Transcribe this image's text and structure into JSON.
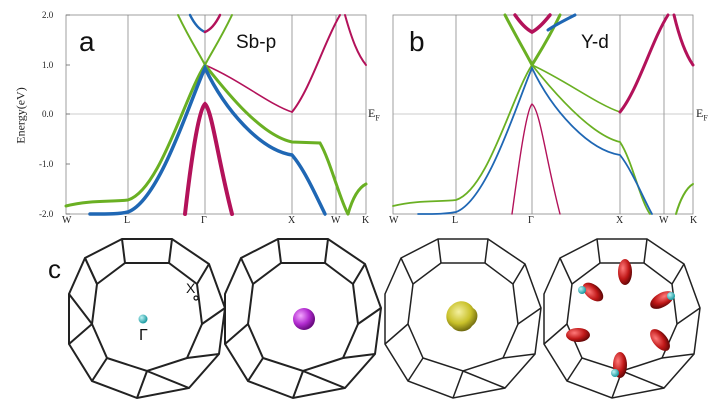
{
  "figure": {
    "panel_a": {
      "label": "a",
      "projection": "Sb-p"
    },
    "panel_b": {
      "label": "b",
      "projection": "Y-d"
    },
    "panel_c": {
      "label": "c",
      "gamma": "Γ",
      "x_point": "X"
    },
    "ylabel": "Energy(eV)",
    "fermi": {
      "E": "E",
      "sub": "F"
    },
    "yticks": [
      "2.0",
      "1.0",
      "0.0",
      "-1.0",
      "-2.0"
    ],
    "kpoints": [
      "W",
      "L",
      "Γ",
      "X",
      "W",
      "K"
    ]
  },
  "colors": {
    "green": "#6ab023",
    "blue": "#1f67b4",
    "magenta": "#b3125a",
    "cyan": "#27c3c9",
    "purple": "#b22bd0",
    "yellow": "#c9c12a",
    "red": "#c01818"
  },
  "chart_data": [
    {
      "type": "line",
      "title": "Sb-p",
      "ylabel": "Energy(eV)",
      "ylim": [
        -2.0,
        2.0
      ],
      "x_ticks": [
        "W",
        "L",
        "Γ",
        "X",
        "W",
        "K"
      ],
      "x": [
        0,
        1,
        2,
        3,
        4,
        5,
        6,
        7,
        8
      ],
      "series": [
        {
          "values": [
            -1.9,
            -1.74,
            -1.2,
            0.2,
            1.0,
            0.0,
            -0.5,
            -1.2,
            -2.0
          ]
        },
        {
          "values": [
            -2.0,
            -2.0,
            -1.6,
            -0.3,
            1.0,
            -0.2,
            -0.58,
            -1.4,
            -2.0
          ]
        },
        {
          "values": [
            -2.0,
            -2.0,
            -2.0,
            -0.5,
            0.2,
            -0.45,
            -0.62,
            -2.0,
            -2.0
          ]
        },
        {
          "values": [
            1.3,
            1.4,
            1.6,
            1.8,
            1.0,
            0.2,
            -0.5,
            1.5,
            2.0
          ]
        }
      ]
    },
    {
      "type": "line",
      "title": "Y-d",
      "ylabel": "Energy(eV)",
      "ylim": [
        -2.0,
        2.0
      ],
      "x_ticks": [
        "W",
        "L",
        "Γ",
        "X",
        "W",
        "K"
      ],
      "x": [
        0,
        1,
        2,
        3,
        4,
        5,
        6,
        7,
        8
      ],
      "series": [
        {
          "values": [
            -1.9,
            -1.74,
            -1.2,
            0.2,
            1.0,
            0.0,
            -0.5,
            -1.2,
            -2.0
          ]
        },
        {
          "values": [
            -2.0,
            -2.0,
            -1.6,
            -0.3,
            1.0,
            -0.2,
            -0.58,
            -1.4,
            -2.0
          ]
        },
        {
          "values": [
            -2.0,
            -2.0,
            -2.0,
            -0.5,
            0.2,
            -0.45,
            -0.62,
            -2.0,
            -2.0
          ]
        },
        {
          "values": [
            1.3,
            1.4,
            1.6,
            1.8,
            1.0,
            0.2,
            -0.5,
            1.5,
            2.0
          ]
        }
      ]
    }
  ]
}
